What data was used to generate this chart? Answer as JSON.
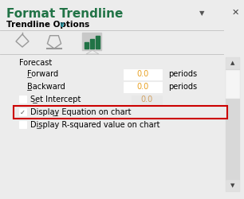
{
  "title": "Format Trendline",
  "subtitle": "Trendline Options",
  "bg_color": "#e8e8e8",
  "panel_bg": "#ececec",
  "title_color": "#217346",
  "title_fontsize": 11,
  "subtitle_fontsize": 7.5,
  "forecast_label": "Forecast",
  "forward_label": "Forward",
  "backward_label": "Backward",
  "set_intercept_label": "Set Intercept",
  "display_equation_label": "Display Equation on chart",
  "display_rsquared_label": "Display R-squared value on chart",
  "forward_value": "0.0",
  "backward_value": "0.0",
  "intercept_value": "0.0",
  "periods_text": "periods",
  "highlight_color": "#cc0000",
  "input_box_color": "#ffffff",
  "input_text_color": "#e8a020",
  "icon_bar_color": "#217346",
  "icon_selected_bg": "#c8c8c8",
  "scrollbar_bg": "#d0d0d0",
  "scrollbar_btn": "#c0c0c0",
  "scrollbar_thumb": "#e8e8e8",
  "separator_color": "#c0c0c0",
  "underline_color": "#000000",
  "checkbox_border": "#aaaaaa",
  "check_color": "#555555",
  "arrow_color": "#555555",
  "intercept_text_color": "#d0a060",
  "content_label_fontsize": 7,
  "value_fontsize": 7
}
